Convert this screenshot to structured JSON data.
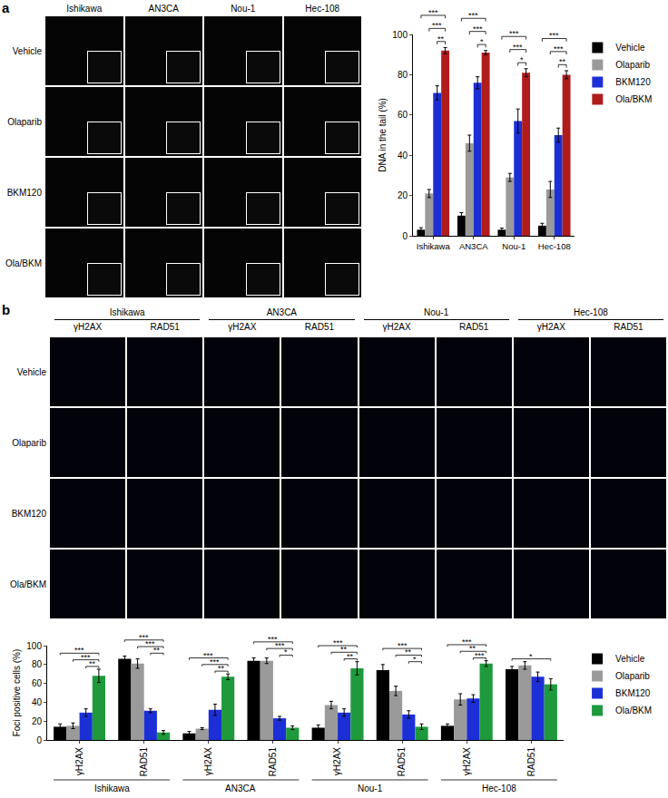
{
  "panels": {
    "a": {
      "label": "a",
      "columns": [
        "Ishikawa",
        "AN3CA",
        "Nou-1",
        "Hec-108"
      ],
      "rows": [
        "Vehicle",
        "Olaparib",
        "BKM120",
        "Ola/BKM"
      ]
    },
    "b": {
      "label": "b",
      "columns": [
        "Ishikawa",
        "AN3CA",
        "Nou-1",
        "Hec-108"
      ],
      "subcolumns": [
        "γH2AX",
        "RAD51"
      ],
      "rows": [
        "Vehicle",
        "Olaparib",
        "BKM120",
        "Ola/BKM"
      ]
    }
  },
  "chart_data": [
    {
      "type": "bar",
      "y_label": "DNA in the tail (%)",
      "categories": [
        "Ishikawa",
        "AN3CA",
        "Nou-1",
        "Hec-108"
      ],
      "series": [
        {
          "name": "Vehicle",
          "color": "#000000",
          "values": [
            3,
            10,
            3,
            5
          ],
          "errors": [
            1,
            1.5,
            0.8,
            1.2
          ]
        },
        {
          "name": "Olaparib",
          "color": "#9a9a9a",
          "values": [
            21,
            46,
            29,
            23
          ],
          "errors": [
            2,
            4,
            2,
            4
          ]
        },
        {
          "name": "BKM120",
          "color": "#1c2fd6",
          "values": [
            71,
            76,
            57,
            50
          ],
          "errors": [
            3.5,
            3,
            6,
            3.5
          ]
        },
        {
          "name": "Ola/BKM",
          "color": "#b01c1c",
          "values": [
            92,
            91,
            81,
            80
          ],
          "errors": [
            1.5,
            1,
            2,
            2
          ]
        }
      ],
      "ylim": [
        0,
        100
      ],
      "yticks": [
        0,
        20,
        40,
        60,
        80,
        100
      ],
      "grid": false,
      "legend": "right",
      "significance": [
        {
          "category": 0,
          "from": "Vehicle",
          "to": "Ola/BKM",
          "label": "***"
        },
        {
          "category": 0,
          "from": "Olaparib",
          "to": "Ola/BKM",
          "label": "***"
        },
        {
          "category": 0,
          "from": "BKM120",
          "to": "Ola/BKM",
          "label": "**"
        },
        {
          "category": 1,
          "from": "Vehicle",
          "to": "Ola/BKM",
          "label": "***"
        },
        {
          "category": 1,
          "from": "Olaparib",
          "to": "Ola/BKM",
          "label": "***"
        },
        {
          "category": 1,
          "from": "BKM120",
          "to": "Ola/BKM",
          "label": "*"
        },
        {
          "category": 2,
          "from": "Vehicle",
          "to": "Ola/BKM",
          "label": "***"
        },
        {
          "category": 2,
          "from": "Olaparib",
          "to": "Ola/BKM",
          "label": "***"
        },
        {
          "category": 2,
          "from": "BKM120",
          "to": "Ola/BKM",
          "label": "*"
        },
        {
          "category": 3,
          "from": "Vehicle",
          "to": "Ola/BKM",
          "label": "***"
        },
        {
          "category": 3,
          "from": "Olaparib",
          "to": "Ola/BKM",
          "label": "***"
        },
        {
          "category": 3,
          "from": "BKM120",
          "to": "Ola/BKM",
          "label": "**"
        }
      ]
    },
    {
      "type": "bar",
      "y_label": "Foci positive cells (%)",
      "categories": [
        "γH2AX",
        "RAD51",
        "γH2AX",
        "RAD51",
        "γH2AX",
        "RAD51",
        "γH2AX",
        "RAD51"
      ],
      "groups": [
        {
          "label": "Ishikawa",
          "indices": [
            0,
            1
          ]
        },
        {
          "label": "AN3CA",
          "indices": [
            2,
            3
          ]
        },
        {
          "label": "Nou-1",
          "indices": [
            4,
            5
          ]
        },
        {
          "label": "Hec-108",
          "indices": [
            6,
            7
          ]
        }
      ],
      "series": [
        {
          "name": "Vehicle",
          "color": "#000000",
          "values": [
            14,
            86,
            7,
            84,
            13,
            74,
            15,
            75
          ],
          "errors": [
            3,
            3,
            2,
            3,
            3,
            6,
            2,
            3
          ]
        },
        {
          "name": "Olaparib",
          "color": "#9a9a9a",
          "values": [
            15,
            81,
            12,
            84,
            37,
            52,
            43,
            79
          ],
          "errors": [
            3,
            5,
            1,
            3,
            4,
            5,
            6,
            4
          ]
        },
        {
          "name": "BKM120",
          "color": "#1c2fd6",
          "values": [
            29,
            31,
            32,
            23,
            29,
            27,
            44,
            67
          ],
          "errors": [
            4,
            2,
            6,
            2,
            4,
            4,
            4,
            5
          ]
        },
        {
          "name": "Ola/BKM",
          "color": "#1e9a3c",
          "values": [
            68,
            8,
            67,
            13,
            76,
            14,
            81,
            59
          ],
          "errors": [
            7,
            2,
            3,
            2,
            7,
            3,
            3,
            6
          ]
        }
      ],
      "ylim": [
        0,
        100
      ],
      "yticks": [
        0,
        20,
        40,
        60,
        80,
        100
      ],
      "grid": false,
      "legend": "right",
      "significance": [
        {
          "category": 0,
          "from": "Vehicle",
          "to": "Ola/BKM",
          "label": "***"
        },
        {
          "category": 0,
          "from": "Olaparib",
          "to": "Ola/BKM",
          "label": "***"
        },
        {
          "category": 0,
          "from": "BKM120",
          "to": "Ola/BKM",
          "label": "**"
        },
        {
          "category": 1,
          "from": "Vehicle",
          "to": "Ola/BKM",
          "label": "***"
        },
        {
          "category": 1,
          "from": "Olaparib",
          "to": "Ola/BKM",
          "label": "***"
        },
        {
          "category": 1,
          "from": "BKM120",
          "to": "Ola/BKM",
          "label": "**"
        },
        {
          "category": 2,
          "from": "Vehicle",
          "to": "Ola/BKM",
          "label": "***"
        },
        {
          "category": 2,
          "from": "Olaparib",
          "to": "Ola/BKM",
          "label": "***"
        },
        {
          "category": 2,
          "from": "BKM120",
          "to": "Ola/BKM",
          "label": "**"
        },
        {
          "category": 3,
          "from": "Vehicle",
          "to": "Ola/BKM",
          "label": "***"
        },
        {
          "category": 3,
          "from": "Olaparib",
          "to": "Ola/BKM",
          "label": "***"
        },
        {
          "category": 3,
          "from": "BKM120",
          "to": "Ola/BKM",
          "label": "*"
        },
        {
          "category": 4,
          "from": "Vehicle",
          "to": "Ola/BKM",
          "label": "***"
        },
        {
          "category": 4,
          "from": "Olaparib",
          "to": "Ola/BKM",
          "label": "**"
        },
        {
          "category": 4,
          "from": "BKM120",
          "to": "Ola/BKM",
          "label": "**"
        },
        {
          "category": 5,
          "from": "Vehicle",
          "to": "Ola/BKM",
          "label": "***"
        },
        {
          "category": 5,
          "from": "Olaparib",
          "to": "Ola/BKM",
          "label": "**"
        },
        {
          "category": 5,
          "from": "BKM120",
          "to": "Ola/BKM",
          "label": "*"
        },
        {
          "category": 6,
          "from": "Vehicle",
          "to": "Ola/BKM",
          "label": "***"
        },
        {
          "category": 6,
          "from": "Olaparib",
          "to": "Ola/BKM",
          "label": "**"
        },
        {
          "category": 6,
          "from": "BKM120",
          "to": "Ola/BKM",
          "label": "***"
        },
        {
          "category": 7,
          "from": "Vehicle",
          "to": "Ola/BKM",
          "label": "*"
        }
      ]
    }
  ]
}
